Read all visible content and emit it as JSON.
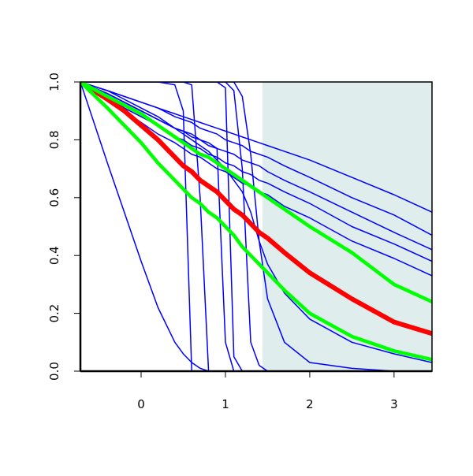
{
  "chart_data": {
    "type": "line",
    "xlim": [
      -0.72,
      3.45
    ],
    "ylim": [
      0,
      1
    ],
    "xticks": [
      0,
      1,
      2,
      3
    ],
    "yticks": [
      {
        "value": 0,
        "label": "0.0"
      },
      0.2,
      0.4,
      0.6,
      0.8,
      {
        "value": 1,
        "label": "1.0"
      }
    ],
    "shade": {
      "x": [
        1.44,
        3.45
      ],
      "color": "#dfeded"
    },
    "x": [
      -0.72,
      -0.4,
      -0.2,
      0,
      0.2,
      0.4,
      0.5,
      0.6,
      0.7,
      0.8,
      0.9,
      1.0,
      1.1,
      1.2,
      1.3,
      1.4,
      1.5,
      1.7,
      2.0,
      2.5,
      3.0,
      3.45
    ],
    "series": [
      {
        "color": "#0000ff",
        "width": 1.5,
        "values": [
          1,
          0.97,
          0.95,
          0.93,
          0.91,
          0.89,
          0.88,
          0.87,
          0.86,
          0.85,
          0.84,
          0.83,
          0.82,
          0.81,
          0.8,
          0.79,
          0.78,
          0.76,
          0.73,
          0.67,
          0.61,
          0.55
        ]
      },
      {
        "color": "#0000ff",
        "width": 1.5,
        "values": [
          1,
          0.96,
          0.93,
          0.9,
          0.87,
          0.84,
          0.83,
          0.82,
          0.8,
          0.79,
          0.77,
          0.76,
          0.75,
          0.73,
          0.72,
          0.71,
          0.69,
          0.66,
          0.62,
          0.55,
          0.48,
          0.42
        ]
      },
      {
        "color": "#0000ff",
        "width": 1.5,
        "values": [
          1,
          0.94,
          0.9,
          0.86,
          0.82,
          0.79,
          0.77,
          0.75,
          0.74,
          0.72,
          0.7,
          0.69,
          0.67,
          0.65,
          0.64,
          0.62,
          0.61,
          0.57,
          0.53,
          0.45,
          0.39,
          0.33
        ]
      },
      {
        "color": "#0000ff",
        "width": 1.5,
        "values": [
          1,
          0.95,
          0.91,
          0.88,
          0.85,
          0.81,
          0.8,
          0.78,
          0.77,
          0.75,
          0.74,
          0.72,
          0.71,
          0.69,
          0.68,
          0.66,
          0.65,
          0.62,
          0.58,
          0.5,
          0.44,
          0.38
        ]
      },
      {
        "color": "#0000ff",
        "width": 1.5,
        "values": [
          1,
          0.72,
          0.55,
          0.38,
          0.22,
          0.1,
          0.06,
          0.03,
          0.01,
          0,
          0,
          0,
          0,
          0,
          0,
          0,
          0,
          0,
          0,
          0,
          0,
          0
        ]
      },
      {
        "color": "#0000ff",
        "width": 1.5,
        "values": [
          1,
          1,
          1,
          1,
          1,
          0.99,
          0.9,
          0,
          0,
          0,
          0,
          0,
          0,
          0,
          0,
          0,
          0,
          0,
          0,
          0,
          0,
          0
        ]
      },
      {
        "color": "#0000ff",
        "width": 1.5,
        "values": [
          1,
          1,
          1,
          1,
          1,
          1,
          1,
          0.99,
          0.6,
          0,
          0,
          0,
          0,
          0,
          0,
          0,
          0,
          0,
          0,
          0,
          0,
          0
        ]
      },
      {
        "color": "#0000ff",
        "width": 1.5,
        "values": [
          1,
          1,
          1,
          1,
          1,
          1,
          1,
          1,
          1,
          1,
          1,
          0.98,
          0.05,
          0,
          0,
          0,
          0,
          0,
          0,
          0,
          0,
          0
        ]
      },
      {
        "color": "#0000ff",
        "width": 1.5,
        "values": [
          1,
          1,
          1,
          1,
          1,
          1,
          1,
          1,
          1,
          1,
          1,
          1,
          0.97,
          0.7,
          0.1,
          0.02,
          0,
          0,
          0,
          0,
          0,
          0
        ]
      },
      {
        "color": "#0000ff",
        "width": 1.5,
        "values": [
          1,
          1,
          1,
          1,
          1,
          1,
          1,
          1,
          1,
          1,
          1,
          1,
          1,
          0.95,
          0.75,
          0.45,
          0.25,
          0.1,
          0.03,
          0.01,
          0,
          0
        ]
      },
      {
        "color": "#0000ff",
        "width": 1.5,
        "values": [
          1,
          0.97,
          0.94,
          0.91,
          0.88,
          0.84,
          0.82,
          0.8,
          0.78,
          0.76,
          0.73,
          0.7,
          0.66,
          0.62,
          0.55,
          0.45,
          0.37,
          0.27,
          0.18,
          0.1,
          0.06,
          0.03
        ]
      },
      {
        "color": "#0000ff",
        "width": 1.5,
        "values": [
          1,
          0.97,
          0.95,
          0.93,
          0.91,
          0.88,
          0.87,
          0.86,
          0.84,
          0.83,
          0.82,
          0.8,
          0.79,
          0.78,
          0.76,
          0.75,
          0.74,
          0.71,
          0.67,
          0.6,
          0.54,
          0.47
        ]
      },
      {
        "color": "#0000ff",
        "width": 1.5,
        "values": [
          1,
          0.96,
          0.93,
          0.9,
          0.87,
          0.84,
          0.83,
          0.81,
          0.8,
          0.78,
          0.77,
          0.1,
          0,
          0,
          0,
          0,
          0,
          0,
          0,
          0,
          0,
          0
        ]
      },
      {
        "color": "#ff0000",
        "width": 6,
        "values": [
          1,
          0.94,
          0.9,
          0.85,
          0.8,
          0.74,
          0.71,
          0.69,
          0.66,
          0.64,
          0.62,
          0.59,
          0.56,
          0.54,
          0.51,
          0.48,
          0.46,
          0.41,
          0.34,
          0.25,
          0.17,
          0.13
        ]
      },
      {
        "color": "#00ff00",
        "width": 4.5,
        "values": [
          1,
          0.95,
          0.92,
          0.89,
          0.85,
          0.81,
          0.79,
          0.77,
          0.75,
          0.74,
          0.72,
          0.7,
          0.68,
          0.66,
          0.64,
          0.62,
          0.6,
          0.56,
          0.5,
          0.41,
          0.3,
          0.24
        ]
      },
      {
        "color": "#00ff00",
        "width": 4.5,
        "values": [
          1,
          0.91,
          0.85,
          0.79,
          0.72,
          0.66,
          0.63,
          0.6,
          0.58,
          0.55,
          0.53,
          0.5,
          0.47,
          0.43,
          0.4,
          0.37,
          0.34,
          0.28,
          0.2,
          0.12,
          0.07,
          0.04
        ]
      }
    ]
  }
}
